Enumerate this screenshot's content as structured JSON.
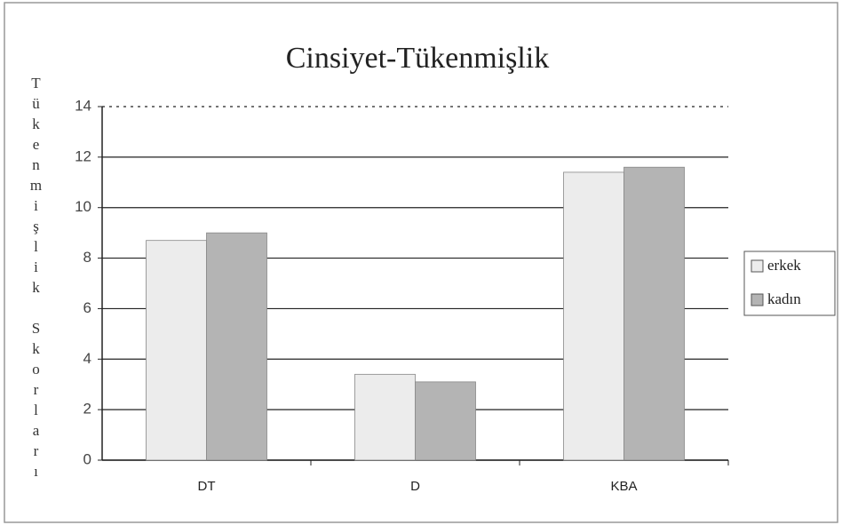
{
  "chart_data": {
    "type": "bar",
    "title": "Cinsiyet-Tükenmişlik",
    "y_label": "Tükenmişlik Skorları",
    "categories": [
      "DT",
      "D",
      "KBA"
    ],
    "series": [
      {
        "name": "erkek",
        "color": "#ececec",
        "values": [
          8.7,
          3.4,
          11.4
        ]
      },
      {
        "name": "kadın",
        "color": "#b4b4b4",
        "values": [
          9.0,
          3.1,
          11.6
        ]
      }
    ],
    "ylim": [
      0,
      14
    ],
    "yticks": [
      0,
      2,
      4,
      6,
      8,
      10,
      12,
      14
    ],
    "grid": true,
    "legend": "right"
  }
}
